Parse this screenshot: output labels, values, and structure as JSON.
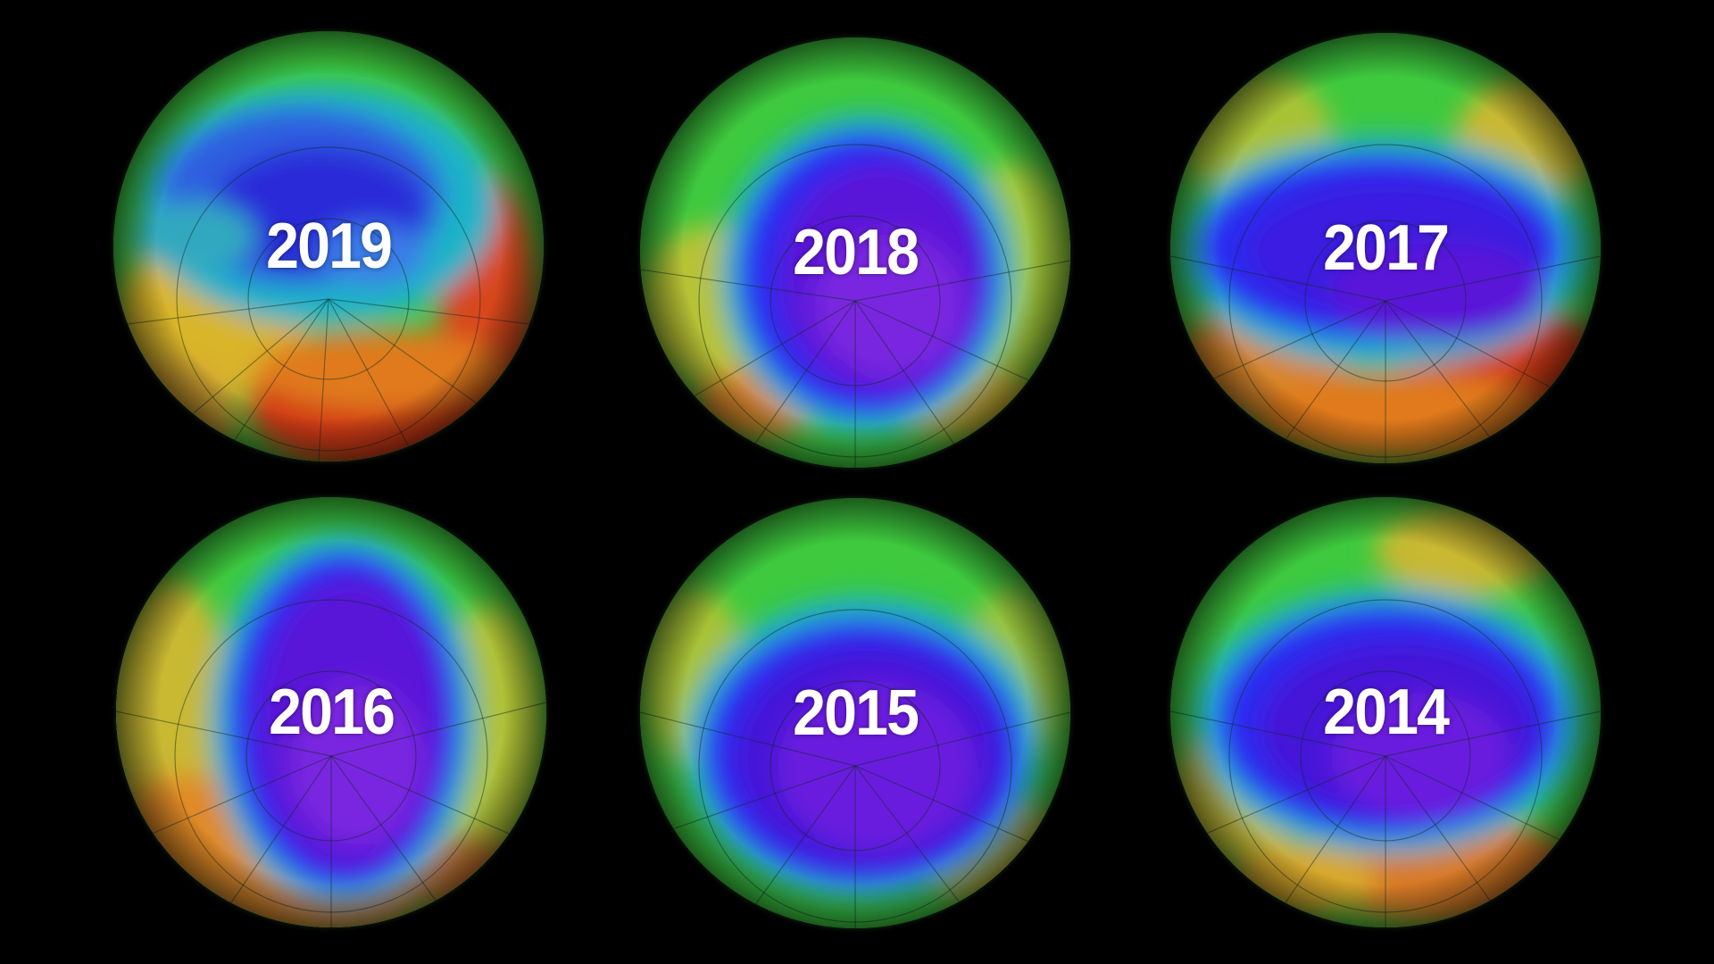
{
  "panels": [
    {
      "year": "2019"
    },
    {
      "year": "2018"
    },
    {
      "year": "2017"
    },
    {
      "year": "2016"
    },
    {
      "year": "2015"
    },
    {
      "year": "2014"
    }
  ],
  "colors": {
    "background": "#000000",
    "ozone_low": "#5a16d8",
    "ozone_mid_low": "#2a2cf0",
    "ozone_mid": "#1fb3c8",
    "ozone_mid_high": "#3ec93e",
    "ozone_high": "#e8b020",
    "ozone_very_high": "#d01818"
  }
}
